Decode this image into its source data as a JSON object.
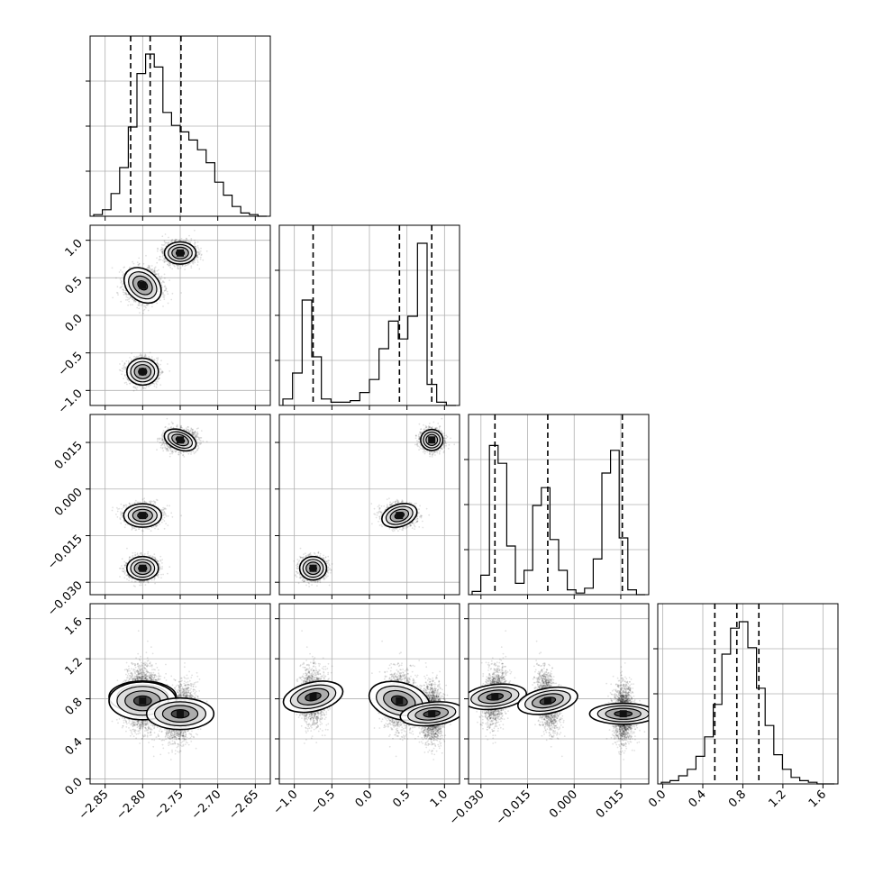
{
  "chart_data": {
    "type": "corner",
    "parameters": [
      {
        "range": [
          -2.87,
          -2.63
        ],
        "ticks": [
          -2.85,
          -2.8,
          -2.75,
          -2.7,
          -2.65
        ],
        "tick_labels": [
          "−2.85",
          "−2.80",
          "−2.75",
          "−2.70",
          "−2.65"
        ],
        "quantiles": [
          -2.816,
          -2.79,
          -2.749
        ]
      },
      {
        "range": [
          -1.2,
          1.2
        ],
        "ticks": [
          -1.0,
          -0.5,
          0.0,
          0.5,
          1.0
        ],
        "tick_labels": [
          "−1.0",
          "−0.5",
          "0.0",
          "0.5",
          "1.0"
        ],
        "quantiles": [
          -0.75,
          0.4,
          0.83
        ]
      },
      {
        "range": [
          -0.034,
          0.024
        ],
        "ticks": [
          -0.03,
          -0.015,
          0.0,
          0.015
        ],
        "tick_labels": [
          "−0.030",
          "−0.015",
          "0.000",
          "0.015"
        ],
        "quantiles": [
          -0.0255,
          -0.0085,
          0.0155
        ]
      },
      {
        "range": [
          -0.05,
          1.75
        ],
        "ticks": [
          0.0,
          0.4,
          0.8,
          1.2,
          1.6
        ],
        "tick_labels": [
          "0.0",
          "0.4",
          "0.8",
          "1.2",
          "1.6"
        ],
        "quantiles": [
          0.52,
          0.74,
          0.96
        ]
      }
    ],
    "histograms": [
      {
        "counts": [
          0.01,
          0.04,
          0.14,
          0.3,
          0.55,
          0.88,
          1.0,
          0.92,
          0.64,
          0.56,
          0.52,
          0.47,
          0.41,
          0.33,
          0.21,
          0.13,
          0.06,
          0.02,
          0.01,
          0.0
        ]
      },
      {
        "counts": [
          0.04,
          0.2,
          0.65,
          0.3,
          0.04,
          0.02,
          0.02,
          0.03,
          0.08,
          0.16,
          0.35,
          0.52,
          0.41,
          0.55,
          1.0,
          0.13,
          0.02,
          0.0
        ]
      },
      {
        "counts": [
          0.02,
          0.12,
          0.92,
          0.81,
          0.3,
          0.07,
          0.15,
          0.55,
          0.66,
          0.34,
          0.15,
          0.03,
          0.01,
          0.04,
          0.22,
          0.75,
          0.89,
          0.35,
          0.03,
          0.0
        ]
      },
      {
        "counts": [
          0.01,
          0.02,
          0.05,
          0.09,
          0.17,
          0.29,
          0.49,
          0.8,
          0.96,
          1.0,
          0.84,
          0.59,
          0.36,
          0.18,
          0.09,
          0.04,
          0.02,
          0.01,
          0.0,
          0.0
        ]
      }
    ],
    "modes": [
      {
        "weight": 0.3,
        "x": -2.8,
        "y": -0.75,
        "z": -0.0255,
        "w": 0.82
      },
      {
        "weight": 0.3,
        "x": -2.8,
        "y": 0.4,
        "z": -0.0085,
        "w": 0.78
      },
      {
        "weight": 0.4,
        "x": -2.75,
        "y": 0.83,
        "z": 0.0158,
        "w": 0.65
      }
    ]
  }
}
